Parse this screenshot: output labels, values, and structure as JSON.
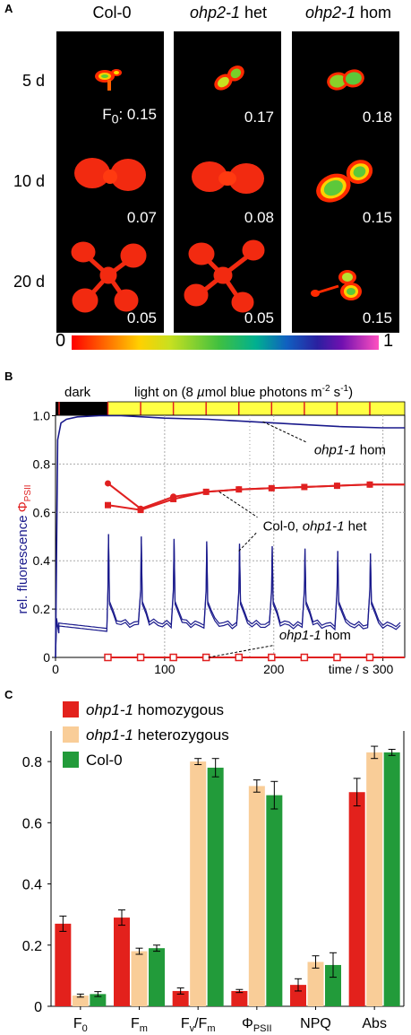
{
  "panel_a": {
    "letter": "A",
    "columns": [
      "Col-0",
      "ohp2-1 het",
      "ohp2-1 hom"
    ],
    "column_parts": [
      {
        "italic": "",
        "plain": "Col-0"
      },
      {
        "italic": "ohp2-1",
        "plain": " het"
      },
      {
        "italic": "ohp2-1",
        "plain": " hom"
      }
    ],
    "rows": [
      "5 d",
      "10 d",
      "20 d"
    ],
    "f0_prefix": "F",
    "f0_sub": "0",
    "f0_suffix": ": ",
    "f0_values": [
      [
        "0.15",
        "0.17",
        "0.18"
      ],
      [
        "0.07",
        "0.08",
        "0.15"
      ],
      [
        "0.05",
        "0.05",
        "0.15"
      ]
    ],
    "colorscale": {
      "min_label": "0",
      "max_label": "1"
    }
  },
  "panel_b": {
    "letter": "B",
    "dark_label": "dark",
    "light_label": "light on (8 µmol blue photons m-2 s-1)",
    "light_parts": {
      "pre": "light on (8 ",
      "mu": "µ",
      "mid": "mol blue photons m",
      "sup1": "-2",
      "mid2": " s",
      "sup2": "-1",
      "post": ")"
    },
    "ylabel_left": "rel. fluorescence",
    "ylabel_right_sym": "Φ",
    "ylabel_right_sub": "PSII",
    "xlabel": "time / s",
    "annotations": {
      "top": "ohp1-1 hom",
      "mid": "Col-0, ohp1-1 het",
      "bottom": "ohp1-1 hom"
    },
    "colors": {
      "fluorescence": "#1a1a8c",
      "phi": "#e02020",
      "light_bar": "#ffff44",
      "dark_bar": "#000000"
    }
  },
  "chart_data": [
    {
      "type": "line",
      "title": "",
      "xlabel": "time / s",
      "ylabel": "rel. fluorescence / ΦPSII",
      "xlim": [
        0,
        320
      ],
      "ylim": [
        0,
        1.05
      ],
      "xticks": [
        0,
        100,
        200,
        300
      ],
      "yticks": [
        0,
        0.2,
        0.4,
        0.6,
        0.8,
        1.0
      ],
      "ytick_labels": [
        "0",
        "0.2",
        "0.4",
        "0.6",
        "0.8",
        "1.0"
      ],
      "pulse_times": [
        48,
        78,
        108,
        138,
        168,
        198,
        228,
        258,
        288
      ],
      "series": [
        {
          "name": "Col-0, ohp1-1 het",
          "kind": "phi",
          "marker": "circle",
          "x": [
            48,
            78,
            108,
            138,
            168,
            198,
            228,
            258,
            288,
            320
          ],
          "values": [
            0.72,
            0.615,
            0.665,
            0.685,
            0.695,
            0.7,
            0.705,
            0.71,
            0.715,
            0.715
          ]
        },
        {
          "name": "Col-0, ohp1-1 het",
          "kind": "phi",
          "marker": "square",
          "x": [
            48,
            78,
            108,
            138,
            168,
            198,
            228,
            258,
            288,
            320
          ],
          "values": [
            0.63,
            0.61,
            0.655,
            0.685,
            0.695,
            0.7,
            0.705,
            0.71,
            0.715,
            0.715
          ]
        },
        {
          "name": "ohp1-1 hom",
          "kind": "phi",
          "marker": "open-square",
          "x": [
            48,
            78,
            108,
            138,
            168,
            198,
            228,
            258,
            288,
            320
          ],
          "values": [
            0,
            0,
            0,
            0,
            0,
            0,
            0,
            0,
            0,
            0
          ]
        },
        {
          "name": "ohp1-1 hom",
          "kind": "fluorescence",
          "x": [
            0,
            2,
            5,
            10,
            20,
            40,
            60,
            100,
            140,
            180,
            220,
            260,
            300,
            320
          ],
          "values": [
            0.0,
            0.9,
            0.97,
            0.985,
            0.995,
            1.0,
            1.0,
            0.99,
            0.985,
            0.975,
            0.965,
            0.955,
            0.95,
            0.95
          ]
        }
      ]
    },
    {
      "type": "bar",
      "title": "",
      "categories": [
        "F0",
        "Fm",
        "Fv/Fm",
        "ΦPSII",
        "NPQ",
        "Abs"
      ],
      "ylim": [
        0,
        0.9
      ],
      "yticks": [
        0,
        0.2,
        0.4,
        0.6,
        0.8
      ],
      "ytick_labels": [
        "0",
        "0.2",
        "0.4",
        "0.6",
        "0.8"
      ],
      "legend_position": "top-left",
      "series": [
        {
          "name": "ohp1-1 homozygous",
          "values": [
            0.27,
            0.29,
            0.05,
            0.05,
            0.07,
            0.7
          ],
          "errors": [
            0.025,
            0.025,
            0.01,
            0.005,
            0.02,
            0.045
          ],
          "color": "#e3211c"
        },
        {
          "name": "ohp1-1 heterozygous",
          "values": [
            0.035,
            0.18,
            0.8,
            0.72,
            0.145,
            0.83
          ],
          "errors": [
            0.005,
            0.01,
            0.01,
            0.02,
            0.02,
            0.02
          ],
          "color": "#f9cd98"
        },
        {
          "name": "Col-0",
          "values": [
            0.04,
            0.19,
            0.78,
            0.69,
            0.135,
            0.83
          ],
          "errors": [
            0.008,
            0.01,
            0.03,
            0.045,
            0.04,
            0.01
          ],
          "color": "#229b3a"
        }
      ]
    }
  ],
  "panel_c": {
    "letter": "C",
    "legend": [
      {
        "italic": "ohp1-1",
        "plain": " homozygous"
      },
      {
        "italic": "ohp1-1",
        "plain": " heterozygous"
      },
      {
        "italic": "",
        "plain": "Col-0"
      }
    ],
    "category_parts": [
      {
        "main": "F",
        "sub": "0"
      },
      {
        "main": "F",
        "sub": "m"
      },
      {
        "main": "F",
        "sub": "v",
        "rest": "/F",
        "sub2": "m"
      },
      {
        "main": "Φ",
        "sub": "PSII"
      },
      {
        "main": "NPQ",
        "sub": ""
      },
      {
        "main": "Abs",
        "sub": ""
      }
    ]
  }
}
